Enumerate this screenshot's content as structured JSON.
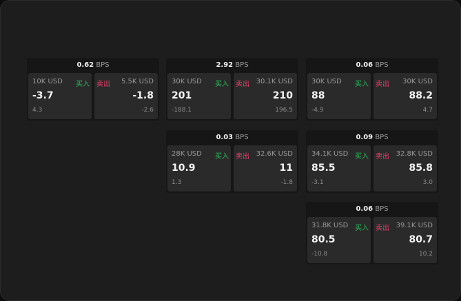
{
  "buy_label": "买入",
  "sell_label": "卖出",
  "unit": "BPS",
  "colors": {
    "buy": "#2eb85c",
    "sell": "#e0406a"
  },
  "quotes": [
    {
      "spread": "0.62",
      "bid_size": "10K USD",
      "bid": "-3.7",
      "bid_change": "4.3",
      "ask_size": "5.5K USD",
      "ask": "-1.8",
      "ask_change": "-2.6"
    },
    {
      "spread": "2.92",
      "bid_size": "30K USD",
      "bid": "201",
      "bid_change": "-188.1",
      "ask_size": "30.1K USD",
      "ask": "210",
      "ask_change": "196.5"
    },
    {
      "spread": "0.06",
      "bid_size": "30K USD",
      "bid": "88",
      "bid_change": "-4.9",
      "ask_size": "30K USD",
      "ask": "88.2",
      "ask_change": "4.7"
    },
    {
      "spread": "0.03",
      "bid_size": "28K USD",
      "bid": "10.9",
      "bid_change": "1.3",
      "ask_size": "32.6K USD",
      "ask": "11",
      "ask_change": "-1.8"
    },
    {
      "spread": "0.09",
      "bid_size": "34.1K USD",
      "bid": "85.5",
      "bid_change": "-3.1",
      "ask_size": "32.8K USD",
      "ask": "85.8",
      "ask_change": "3.0"
    },
    {
      "spread": "0.06",
      "bid_size": "31.8K USD",
      "bid": "80.5",
      "bid_change": "-10.8",
      "ask_size": "39.1K USD",
      "ask": "80.7",
      "ask_change": "10.2"
    }
  ]
}
